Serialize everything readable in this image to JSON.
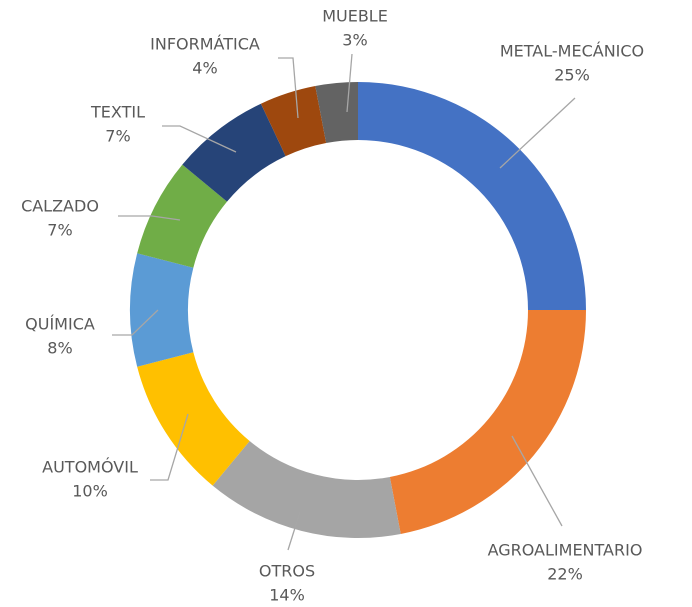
{
  "chart_data": {
    "type": "donut",
    "categories": [
      "METAL-MECÁNICO",
      "AGROALIMENTARIO",
      "OTROS",
      "AUTOMÓVIL",
      "QUÍMICA",
      "CALZADO",
      "TEXTIL",
      "INFORMÁTICA",
      "MUEBLE"
    ],
    "values": [
      25,
      22,
      14,
      10,
      8,
      7,
      7,
      4,
      3
    ],
    "value_labels": [
      "25%",
      "22%",
      "14%",
      "10%",
      "8%",
      "7%",
      "7%",
      "4%",
      "3%"
    ],
    "colors": [
      "#4472c4",
      "#ed7d31",
      "#a5a5a5",
      "#ffc000",
      "#5b9bd5",
      "#70ad47",
      "#264478",
      "#9e480e",
      "#636363"
    ]
  }
}
